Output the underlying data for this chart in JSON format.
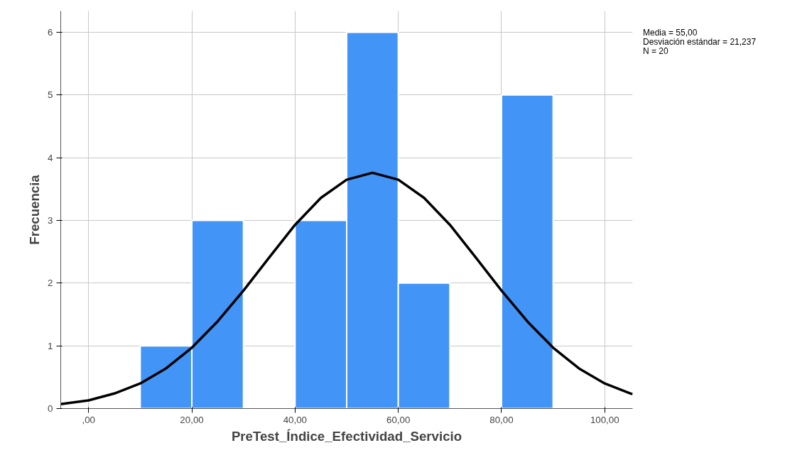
{
  "chart_data": {
    "type": "histogram",
    "xlabel": "PreTest_Índice_Efectividad_Servicio",
    "ylabel": "Frecuencia",
    "bins": [
      10,
      20,
      30,
      40,
      50,
      60,
      70,
      80,
      90
    ],
    "values": [
      1,
      3,
      0,
      3,
      6,
      2,
      0,
      5
    ],
    "color": "#4294f7",
    "series": [
      {
        "type": "line",
        "color": "#000000",
        "x": [
          -5.4,
          0,
          5,
          10,
          15,
          20,
          25,
          30,
          35,
          40,
          45,
          50,
          55,
          60,
          65,
          70,
          75,
          80,
          85,
          90,
          95,
          100,
          105,
          105.4
        ],
        "values": [
          0.07,
          0.13,
          0.24,
          0.4,
          0.64,
          0.97,
          1.39,
          1.88,
          2.41,
          2.93,
          3.36,
          3.65,
          3.76,
          3.65,
          3.36,
          2.93,
          2.41,
          1.88,
          1.39,
          0.97,
          0.64,
          0.4,
          0.24,
          0.23
        ]
      }
    ],
    "xlim": [
      -5.4,
      105.4
    ],
    "xticks": [
      {
        "value": 0,
        "label": ",00"
      },
      {
        "value": 20,
        "label": "20,00"
      },
      {
        "value": 40,
        "label": "40,00"
      },
      {
        "value": 60,
        "label": "60,00"
      },
      {
        "value": 80,
        "label": "80,00"
      },
      {
        "value": 100,
        "label": "100,00"
      }
    ],
    "ylim": [
      0,
      6.34
    ],
    "yticks": [
      0,
      1,
      2,
      3,
      4,
      5,
      6
    ],
    "grid": true,
    "annotations": [
      "Media = 55,00",
      "Desviación estándar = 21,237",
      "N = 20"
    ]
  }
}
